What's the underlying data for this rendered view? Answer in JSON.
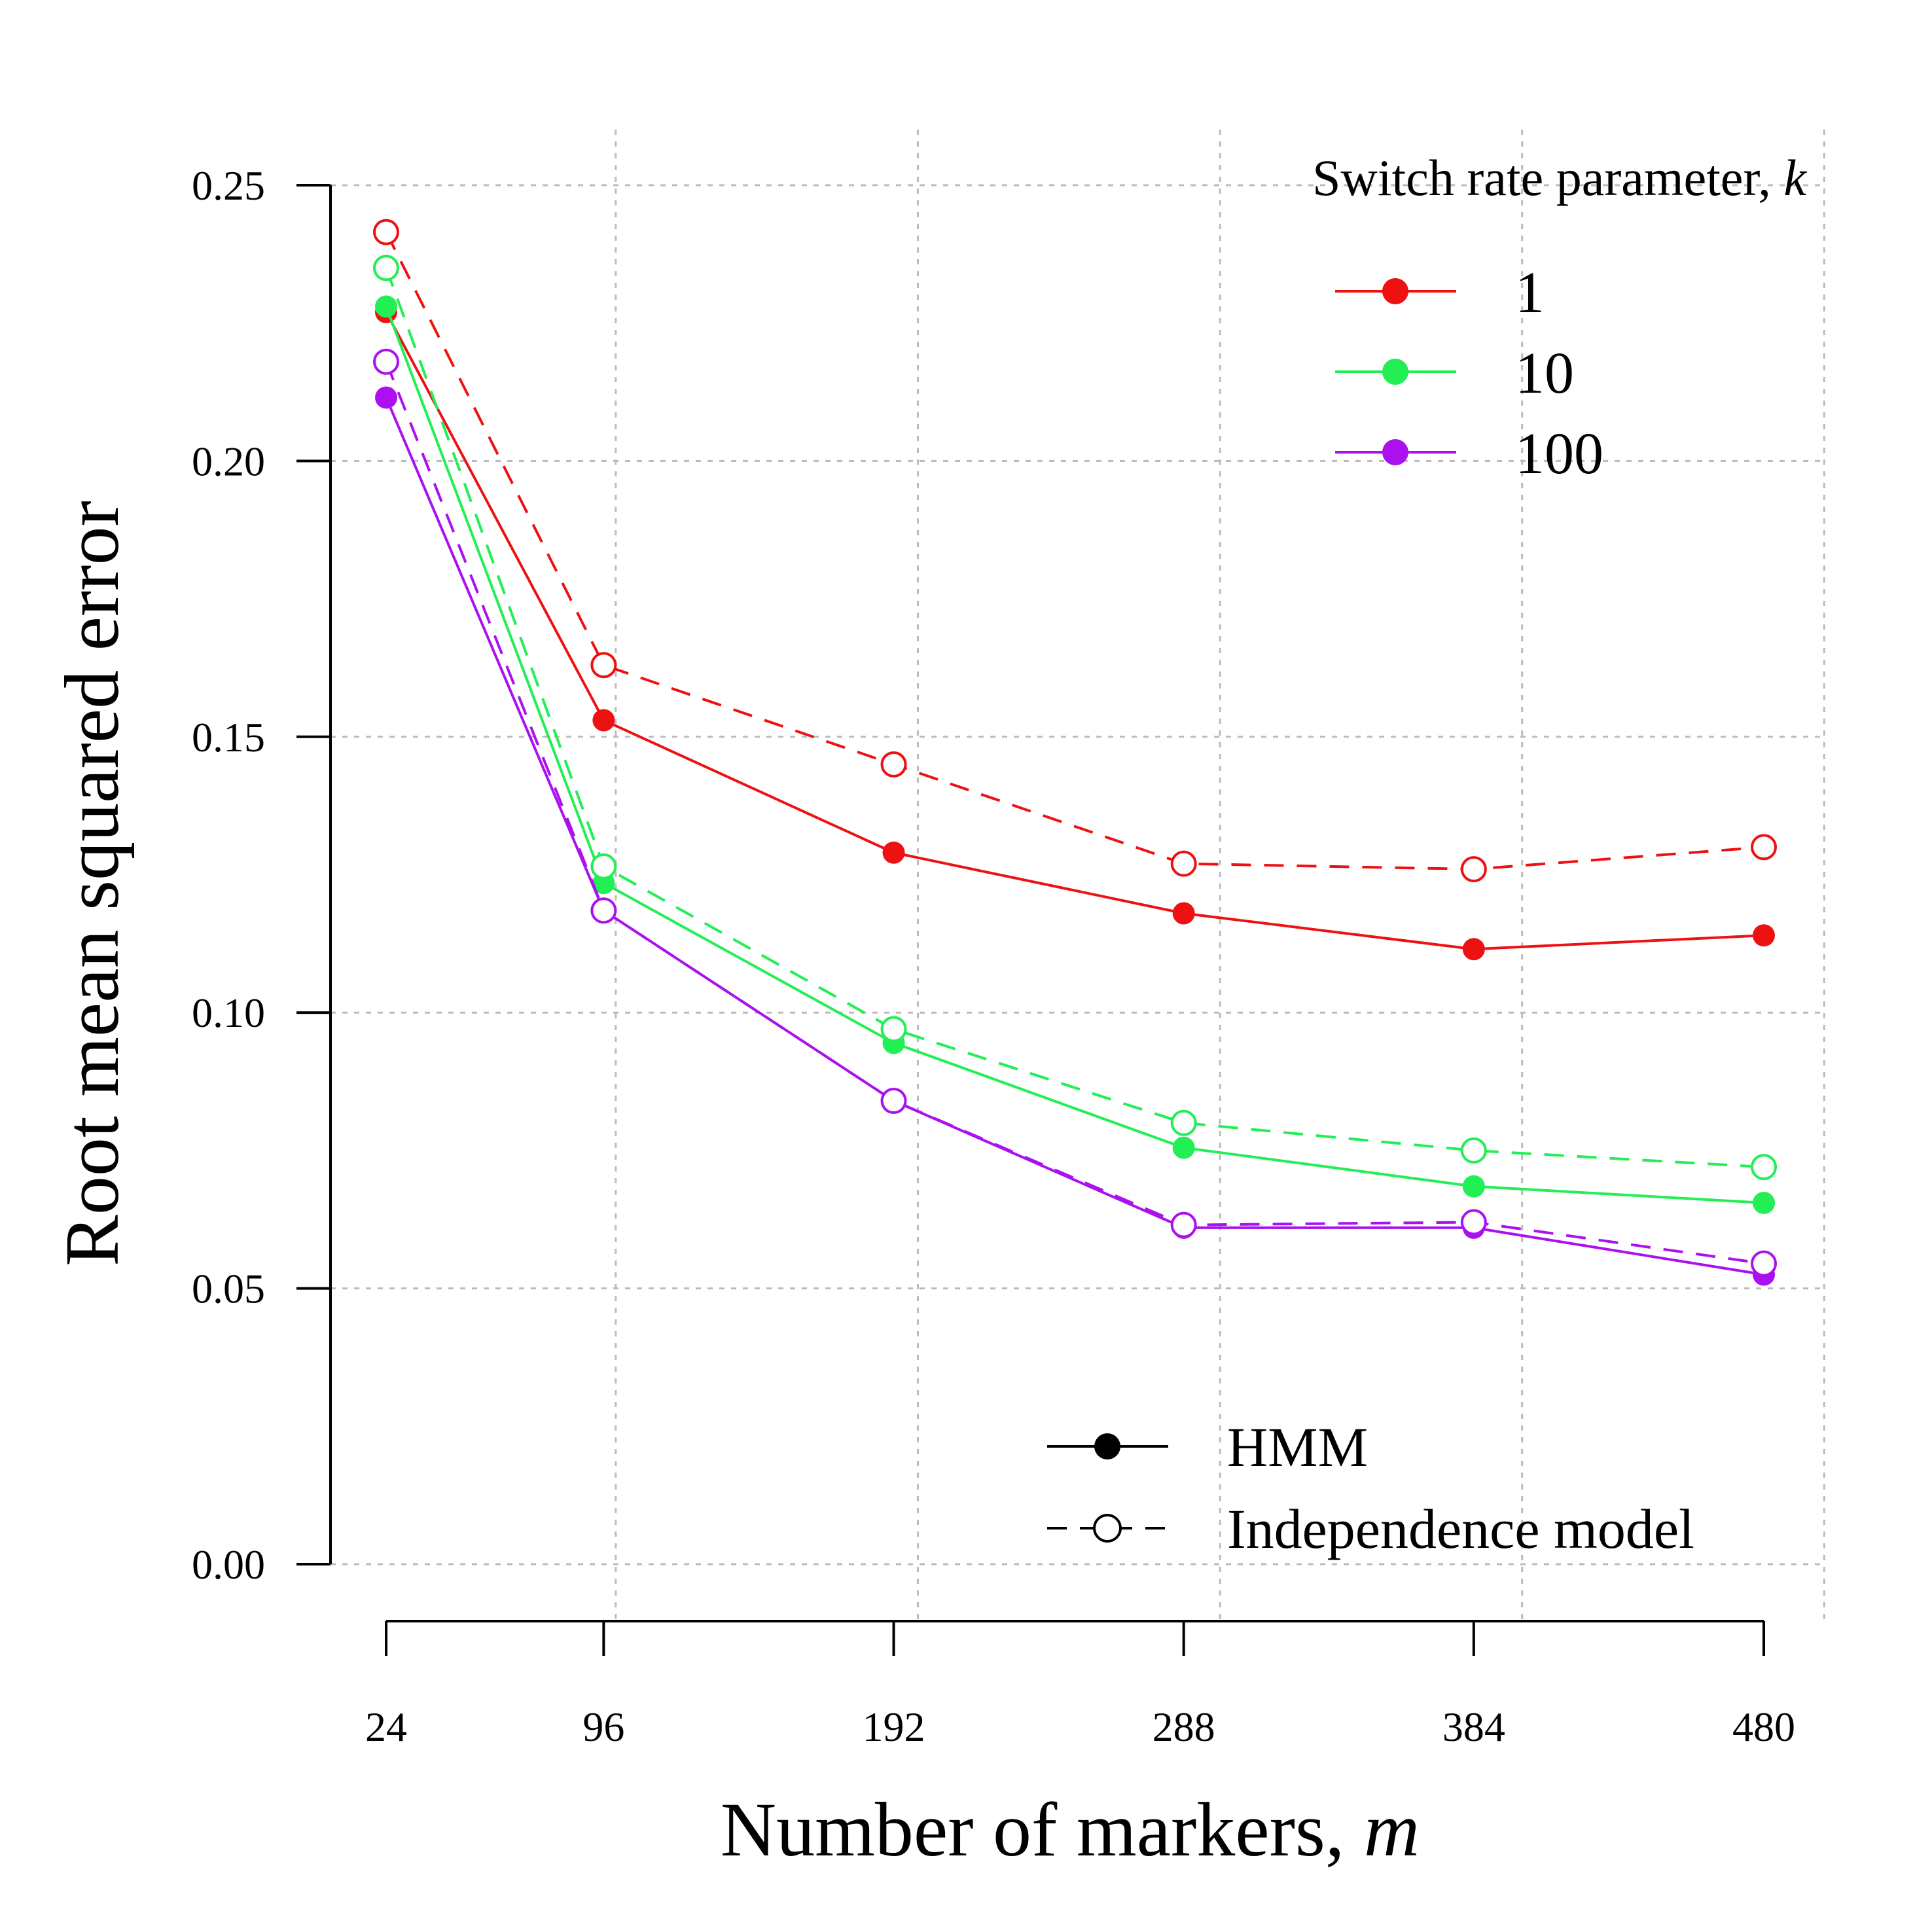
{
  "chart_data": {
    "type": "line",
    "xlabel": "Number of markers, ",
    "xlabel_var": "m",
    "ylabel": "Root mean squared error",
    "x": [
      24,
      96,
      192,
      288,
      384,
      480
    ],
    "x_tick_labels": [
      "24",
      "96",
      "192",
      "288",
      "384",
      "480"
    ],
    "y_tick_labels": [
      "0.00",
      "0.05",
      "0.10",
      "0.15",
      "0.20",
      "0.25"
    ],
    "y_ticks": [
      0,
      0.05,
      0.1,
      0.15,
      0.2,
      0.25
    ],
    "xlim": [
      24,
      480
    ],
    "ylim": [
      0,
      0.25
    ],
    "grid": true,
    "legend_title": "Switch rate parameter, ",
    "legend_title_var": "k",
    "legend_placement": "top-right",
    "model_legend_placement": "bottom-right",
    "models": [
      {
        "name": "HMM",
        "linestyle": "solid",
        "marker": "filled"
      },
      {
        "name": "Independence model",
        "linestyle": "dashed",
        "marker": "open"
      }
    ],
    "series": [
      {
        "name": "1",
        "color": "#ee1111",
        "model": "HMM",
        "values": [
          0.227,
          0.153,
          0.129,
          0.118,
          0.1115,
          0.114
        ]
      },
      {
        "name": "1",
        "color": "#ee1111",
        "model": "Independence model",
        "values": [
          0.2415,
          0.163,
          0.145,
          0.127,
          0.126,
          0.13
        ]
      },
      {
        "name": "10",
        "color": "#22ee55",
        "model": "HMM",
        "values": [
          0.228,
          0.1235,
          0.0945,
          0.0755,
          0.0685,
          0.0655
        ]
      },
      {
        "name": "10",
        "color": "#22ee55",
        "model": "Independence model",
        "values": [
          0.235,
          0.1265,
          0.097,
          0.08,
          0.075,
          0.072
        ]
      },
      {
        "name": "100",
        "color": "#aa11ee",
        "model": "HMM",
        "values": [
          0.2115,
          0.1185,
          0.084,
          0.061,
          0.061,
          0.0525
        ]
      },
      {
        "name": "100",
        "color": "#aa11ee",
        "model": "Independence model",
        "values": [
          0.218,
          0.1185,
          0.084,
          0.0615,
          0.062,
          0.0545
        ]
      }
    ]
  }
}
